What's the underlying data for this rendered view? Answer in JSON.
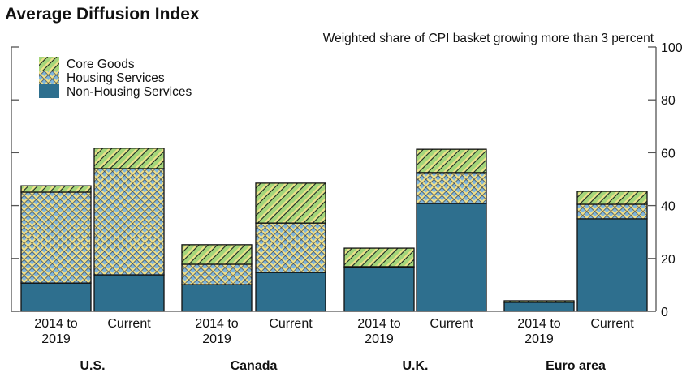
{
  "chart_data": {
    "type": "bar",
    "stacked": true,
    "title": "Average Diffusion Index",
    "subtitle": "Weighted share of CPI basket growing more than 3 percent",
    "ylim": [
      0,
      100
    ],
    "yticks": [
      0,
      20,
      40,
      60,
      80,
      100
    ],
    "grid": false,
    "legend_position": "top-left",
    "groups": [
      {
        "label": "U.S.",
        "bars": [
          "2014 to\n2019",
          "Current"
        ]
      },
      {
        "label": "Canada",
        "bars": [
          "2014 to\n2019",
          "Current"
        ]
      },
      {
        "label": "U.K.",
        "bars": [
          "2014 to\n2019",
          "Current"
        ]
      },
      {
        "label": "Euro area",
        "bars": [
          "2014 to\n2019",
          "Current"
        ]
      }
    ],
    "categories": [
      "U.S. 2014 to 2019",
      "U.S. Current",
      "Canada 2014 to 2019",
      "Canada Current",
      "U.K. 2014 to 2019",
      "U.K. Current",
      "Euro area 2014 to 2019",
      "Euro area Current"
    ],
    "series": [
      {
        "name": "Non-Housing Services",
        "color": "#2e6f8e",
        "values": [
          10.7,
          13.8,
          10.1,
          14.7,
          16.6,
          40.8,
          3.4,
          35.0
        ]
      },
      {
        "name": "Housing Services",
        "color": "#7fb5dc",
        "values": [
          34.4,
          40.2,
          7.7,
          18.7,
          0.3,
          11.7,
          0.1,
          5.5
        ]
      },
      {
        "name": "Core Goods",
        "color": "#a4d67a",
        "values": [
          2.4,
          7.7,
          7.4,
          15.1,
          7.0,
          8.8,
          0.5,
          4.9
        ]
      }
    ]
  }
}
